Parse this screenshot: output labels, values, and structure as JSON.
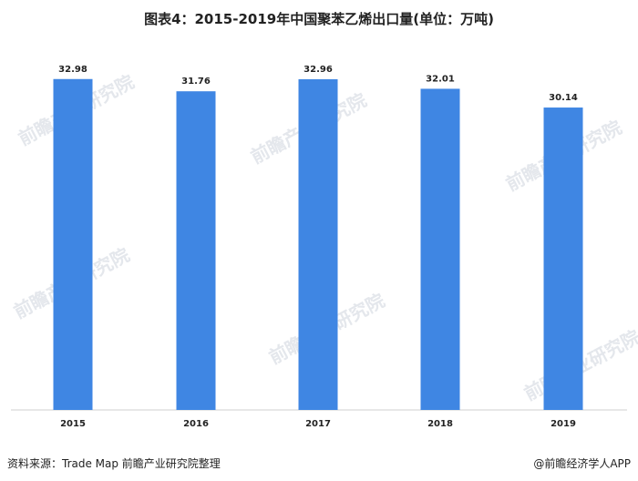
{
  "title": "图表4：2015-2019年中国聚苯乙烯出口量(单位：万吨)",
  "footer": {
    "source": "资料来源：Trade Map 前瞻产业研究院整理",
    "brand": "@前瞻经济学人APP"
  },
  "watermark": "前瞻产业研究院",
  "chart_data": {
    "type": "bar",
    "categories": [
      "2015",
      "2016",
      "2017",
      "2018",
      "2019"
    ],
    "values": [
      32.98,
      31.76,
      32.96,
      32.01,
      30.14
    ],
    "data_labels": [
      "32.98",
      "31.76",
      "32.96",
      "32.01",
      "30.14"
    ],
    "ylim": [
      0,
      36.5
    ],
    "grid": false,
    "bar_color": "#3f86e3"
  }
}
